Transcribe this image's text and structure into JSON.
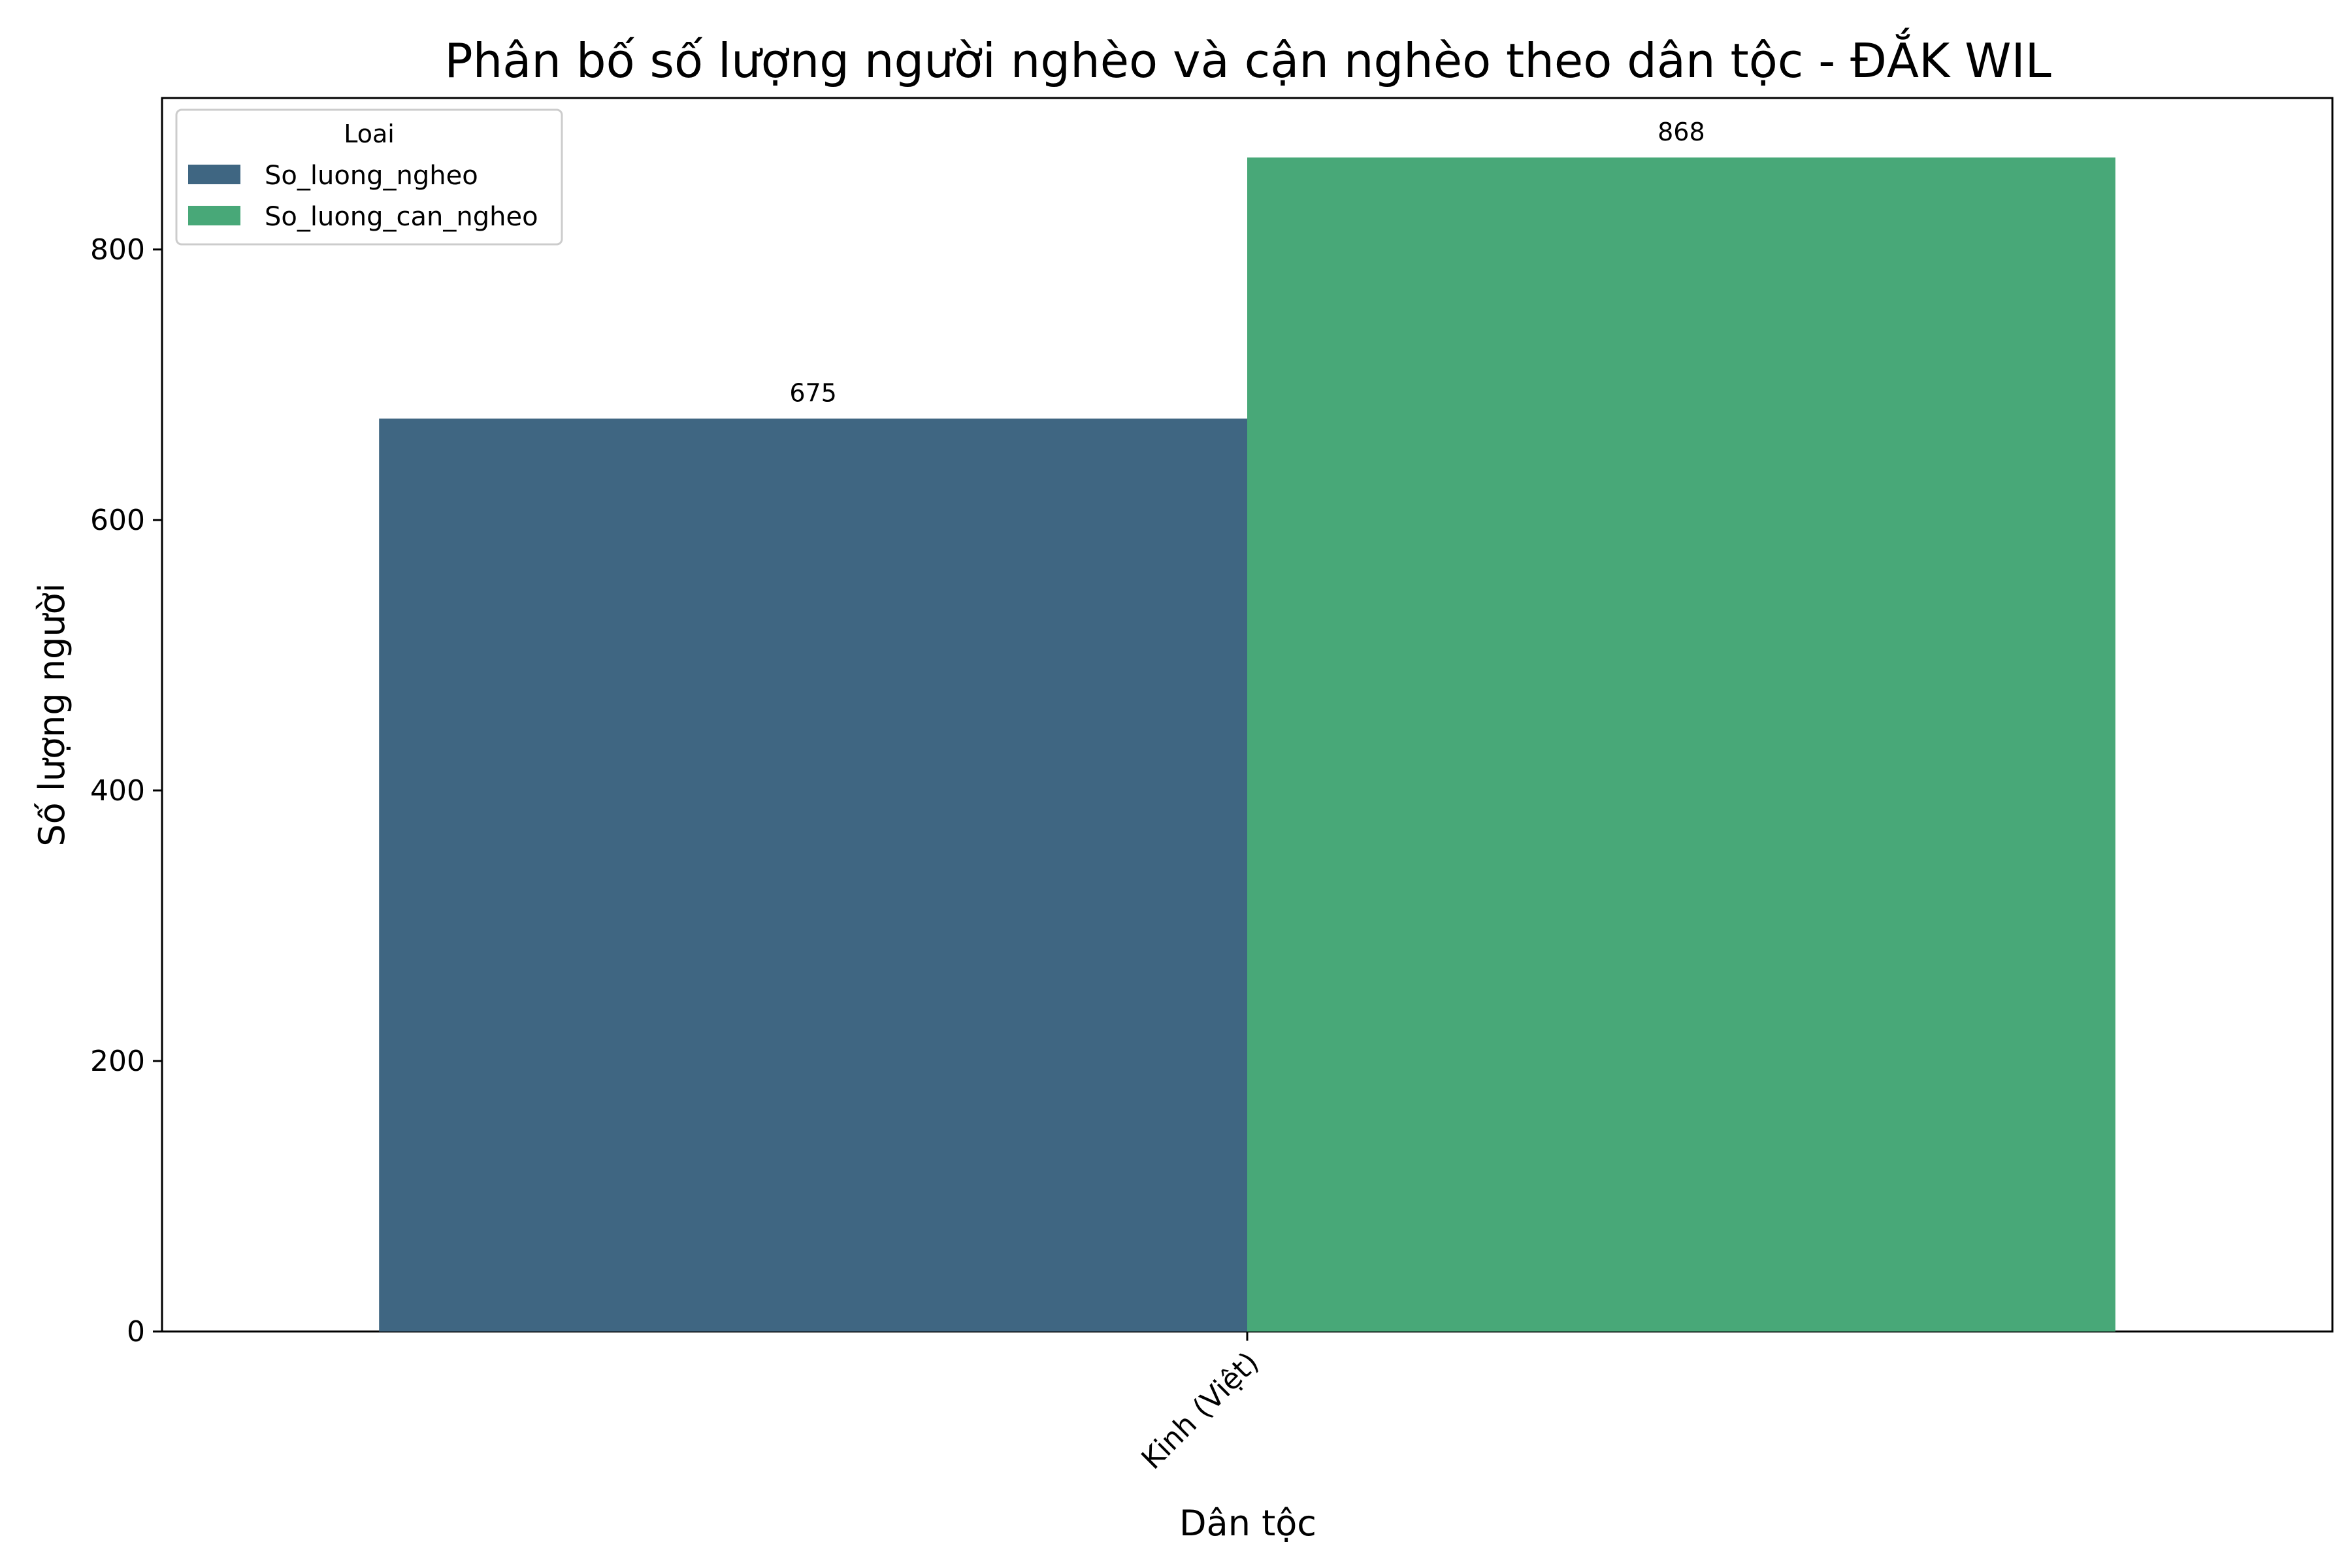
{
  "chart_data": {
    "type": "bar",
    "title": "Phân bố số lượng người nghèo và cận nghèo theo dân tộc - ĐẮK WIL",
    "xlabel": "Dân tộc",
    "ylabel": "Số lượng người",
    "categories": [
      "Kinh (Việt)"
    ],
    "series": [
      {
        "name": "So_luong_ngheo",
        "values": [
          675
        ],
        "color": "#3f6682"
      },
      {
        "name": "So_luong_can_ngheo",
        "values": [
          868
        ],
        "color": "#48a878"
      }
    ],
    "ylim": [
      0,
      912
    ],
    "yticks": [
      0,
      200,
      400,
      600,
      800
    ],
    "grid": false,
    "legend": {
      "title": "Loai",
      "placement": "top-left"
    },
    "data_labels": true
  }
}
